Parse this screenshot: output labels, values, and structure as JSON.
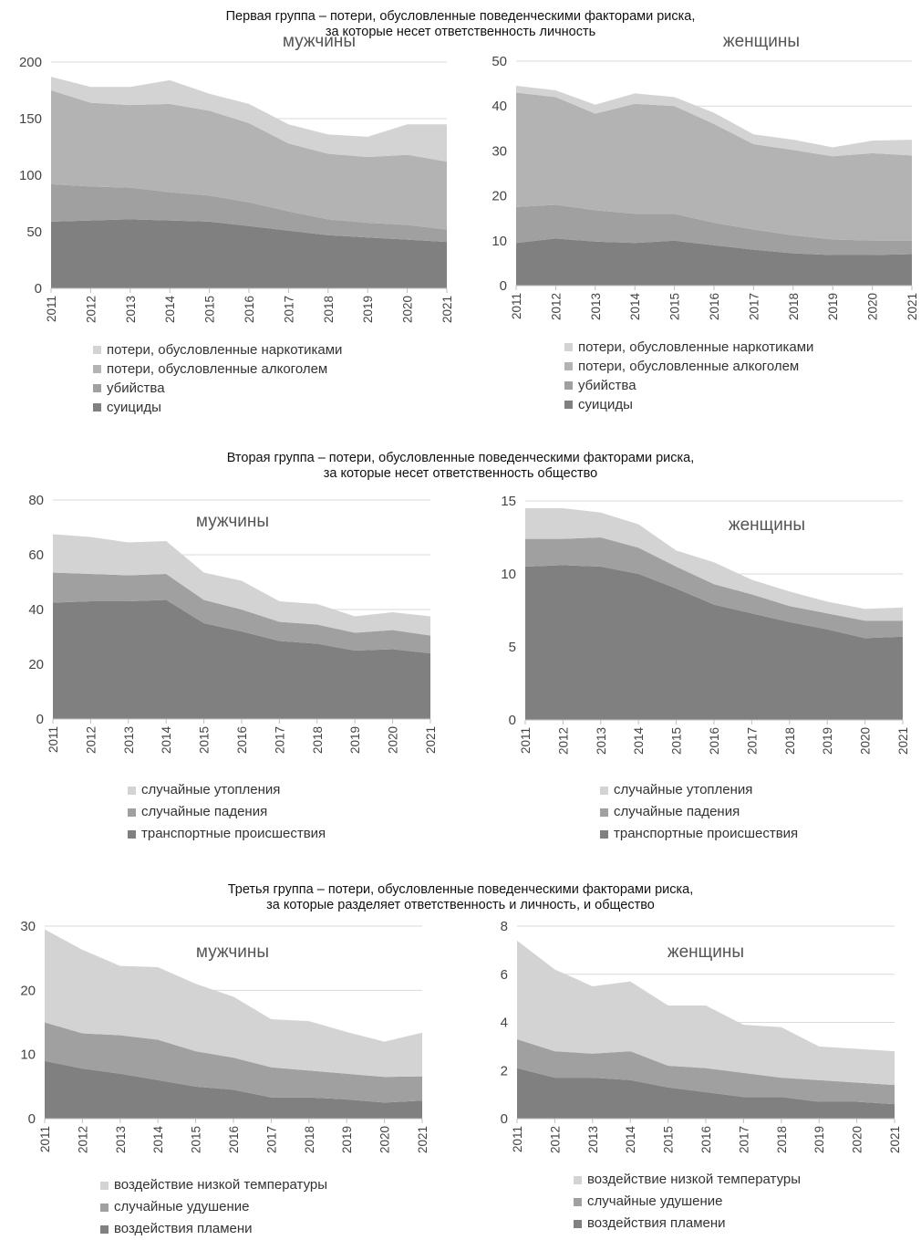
{
  "groups": [
    {
      "title_line1": "Первая группа – потери, обусловленные поведенческими факторами риска,",
      "title_line2": "за которые несет ответственность личность"
    },
    {
      "title_line1": "Вторая группа – потери, обусловленные поведенческими факторами риска,",
      "title_line2": "за которые несет ответственность общество"
    },
    {
      "title_line1": "Третья группа – потери, обусловленные поведенческими факторами риска,",
      "title_line2": "за которые разделяет ответственность и личность, и общество"
    }
  ],
  "colors": {
    "dark": "#808080",
    "mid": "#a0a0a0",
    "light": "#b3b3b3",
    "lightest": "#d3d3d3",
    "gridline": "#d9d9d9",
    "axis": "#bfbfbf"
  },
  "chart_data": [
    {
      "id": "g1-men",
      "type": "area",
      "stacked": true,
      "title": "мужчины",
      "categories": [
        "2011",
        "2012",
        "2013",
        "2014",
        "2015",
        "2016",
        "2017",
        "2018",
        "2019",
        "2020",
        "2021"
      ],
      "ylim": [
        0,
        200
      ],
      "yticks": [
        0,
        50,
        100,
        150,
        200
      ],
      "grid": true,
      "series": [
        {
          "name": "суициды",
          "color": "dark",
          "values": [
            59,
            60,
            61,
            60,
            59,
            55,
            51,
            47,
            45,
            43,
            41
          ]
        },
        {
          "name": "убийства",
          "color": "mid",
          "values": [
            33,
            30,
            28,
            25,
            23,
            21,
            17,
            14,
            13,
            13,
            11
          ]
        },
        {
          "name": "потери, обусловленные алкоголем",
          "color": "light",
          "values": [
            83,
            74,
            73,
            78,
            75,
            70,
            60,
            58,
            58,
            62,
            60
          ]
        },
        {
          "name": "потери, обусловленные наркотиками",
          "color": "lightest",
          "values": [
            12,
            14,
            16,
            21,
            15,
            17,
            17,
            17,
            18,
            27,
            33
          ]
        }
      ]
    },
    {
      "id": "g1-women",
      "type": "area",
      "stacked": true,
      "title": "женщины",
      "categories": [
        "2011",
        "2012",
        "2013",
        "2014",
        "2015",
        "2016",
        "2017",
        "2018",
        "2019",
        "2020",
        "2021"
      ],
      "ylim": [
        0,
        50
      ],
      "yticks": [
        0,
        10,
        20,
        30,
        40,
        50
      ],
      "grid": true,
      "series": [
        {
          "name": "суициды",
          "color": "dark",
          "values": [
            9.5,
            10.5,
            9.8,
            9.5,
            10,
            9,
            8,
            7.2,
            6.8,
            6.8,
            7
          ]
        },
        {
          "name": "убийства",
          "color": "mid",
          "values": [
            8,
            7.5,
            7,
            6.5,
            6,
            5,
            4.5,
            4,
            3.5,
            3.2,
            3
          ]
        },
        {
          "name": "потери, обусловленные алкоголем",
          "color": "light",
          "values": [
            25.5,
            24,
            21.5,
            24.5,
            24,
            22,
            19,
            19,
            18.5,
            19.5,
            19
          ]
        },
        {
          "name": "потери, обусловленные наркотиками",
          "color": "lightest",
          "values": [
            1.5,
            1.5,
            2,
            2.3,
            2,
            2.5,
            2.2,
            2.3,
            2,
            2.8,
            3.5
          ]
        }
      ]
    },
    {
      "id": "g2-men",
      "type": "area",
      "stacked": true,
      "title": "мужчины",
      "categories": [
        "2011",
        "2012",
        "2013",
        "2014",
        "2015",
        "2016",
        "2017",
        "2018",
        "2019",
        "2020",
        "2021"
      ],
      "ylim": [
        0,
        80
      ],
      "yticks": [
        0,
        20,
        40,
        60,
        80
      ],
      "grid": true,
      "series": [
        {
          "name": "транспортные происшествия",
          "color": "dark",
          "values": [
            42.5,
            43,
            43,
            43.5,
            35,
            32,
            28.5,
            27.5,
            25,
            25.5,
            24
          ]
        },
        {
          "name": "случайные падения",
          "color": "mid",
          "values": [
            11,
            10,
            9.5,
            9.5,
            8.5,
            8,
            7,
            7,
            6.5,
            7,
            6.5
          ]
        },
        {
          "name": "случайные утопления",
          "color": "lightest",
          "values": [
            14,
            13.5,
            12,
            12,
            10,
            10.5,
            7.5,
            7.5,
            6,
            6.5,
            7
          ]
        }
      ]
    },
    {
      "id": "g2-women",
      "type": "area",
      "stacked": true,
      "title": "женщины",
      "categories": [
        "2011",
        "2012",
        "2013",
        "2014",
        "2015",
        "2016",
        "2017",
        "2018",
        "2019",
        "2020",
        "2021"
      ],
      "ylim": [
        0,
        15
      ],
      "yticks": [
        0,
        5,
        10,
        15
      ],
      "grid": true,
      "series": [
        {
          "name": "транспортные происшествия",
          "color": "dark",
          "values": [
            10.5,
            10.6,
            10.5,
            10,
            9,
            7.9,
            7.3,
            6.7,
            6.2,
            5.6,
            5.7
          ]
        },
        {
          "name": "случайные падения",
          "color": "mid",
          "values": [
            1.9,
            1.8,
            2.0,
            1.8,
            1.5,
            1.4,
            1.3,
            1.1,
            1.1,
            1.2,
            1.1
          ]
        },
        {
          "name": "случайные утопления",
          "color": "lightest",
          "values": [
            2.1,
            2.1,
            1.7,
            1.6,
            1.1,
            1.5,
            1.0,
            1.0,
            0.8,
            0.8,
            0.9
          ]
        }
      ]
    },
    {
      "id": "g3-men",
      "type": "area",
      "stacked": true,
      "title": "мужчины",
      "categories": [
        "2011",
        "2012",
        "2013",
        "2014",
        "2015",
        "2016",
        "2017",
        "2018",
        "2019",
        "2020",
        "2021"
      ],
      "ylim": [
        0,
        30
      ],
      "yticks": [
        0,
        10,
        20,
        30
      ],
      "grid": true,
      "series": [
        {
          "name": "воздействия пламени",
          "color": "dark",
          "values": [
            9,
            7.8,
            7,
            6,
            5,
            4.5,
            3.3,
            3.3,
            3,
            2.5,
            2.8
          ]
        },
        {
          "name": "случайные удушение",
          "color": "mid",
          "values": [
            6,
            5.5,
            6,
            6.3,
            5.5,
            5,
            4.7,
            4.2,
            4,
            4,
            3.8
          ]
        },
        {
          "name": "воздействие низкой температуры",
          "color": "lightest",
          "values": [
            14.5,
            13,
            10.8,
            11.3,
            10.5,
            9.5,
            7.5,
            7.7,
            6.5,
            5.5,
            6.8
          ]
        }
      ]
    },
    {
      "id": "g3-women",
      "type": "area",
      "stacked": true,
      "title": "женщины",
      "categories": [
        "2011",
        "2012",
        "2013",
        "2014",
        "2015",
        "2016",
        "2017",
        "2018",
        "2019",
        "2020",
        "2021"
      ],
      "ylim": [
        0,
        8
      ],
      "yticks": [
        0,
        2,
        4,
        6,
        8
      ],
      "grid": true,
      "series": [
        {
          "name": "воздействия пламени",
          "color": "dark",
          "values": [
            2.1,
            1.7,
            1.7,
            1.6,
            1.3,
            1.1,
            0.9,
            0.9,
            0.7,
            0.7,
            0.6
          ]
        },
        {
          "name": "случайные удушение",
          "color": "mid",
          "values": [
            1.2,
            1.1,
            1.0,
            1.2,
            0.9,
            1.0,
            1.0,
            0.8,
            0.9,
            0.8,
            0.8
          ]
        },
        {
          "name": "воздействие низкой температуры",
          "color": "lightest",
          "values": [
            4.1,
            3.4,
            2.8,
            2.9,
            2.5,
            2.6,
            2.0,
            2.1,
            1.4,
            1.4,
            1.4
          ]
        }
      ]
    }
  ]
}
